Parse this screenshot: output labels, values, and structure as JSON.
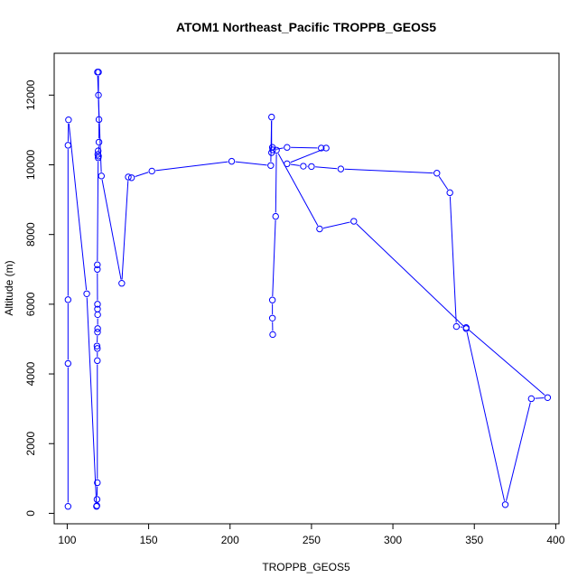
{
  "chart_data": {
    "type": "line",
    "title": "ATOM1 Northeast_Pacific TROPPB_GEOS5",
    "xlabel": "TROPPB_GEOS5",
    "ylabel": "Altitude (m)",
    "xlim": [
      92,
      402
    ],
    "ylim": [
      -300,
      13200
    ],
    "xticks": [
      100,
      150,
      200,
      250,
      300,
      350,
      400
    ],
    "yticks": [
      0,
      2000,
      4000,
      6000,
      8000,
      10000,
      12000
    ],
    "grid": false,
    "markers": "open-circle",
    "color": "#0000ff",
    "series": [
      {
        "points": [
          [
            100.5,
            200
          ],
          [
            100.5,
            4300
          ],
          [
            100.5,
            6130
          ],
          [
            100.5,
            10560
          ],
          [
            100.8,
            11290
          ],
          [
            112,
            6300
          ],
          [
            118,
            200
          ],
          [
            118.2,
            220
          ],
          [
            118.3,
            400
          ],
          [
            118.5,
            880
          ],
          [
            118.5,
            4380
          ],
          [
            118.5,
            4730
          ],
          [
            118.3,
            4800
          ],
          [
            118.6,
            5200
          ],
          [
            118.7,
            5300
          ],
          [
            118.7,
            5700
          ],
          [
            118.6,
            5860
          ],
          [
            118.6,
            6000
          ],
          [
            118.5,
            7000
          ],
          [
            118.5,
            7130
          ],
          [
            119,
            10200
          ],
          [
            118.8,
            10300
          ],
          [
            119,
            10400
          ],
          [
            119.2,
            10250
          ],
          [
            119.5,
            10650
          ],
          [
            119.5,
            11300
          ],
          [
            119.2,
            12000
          ],
          [
            119.2,
            12660
          ],
          [
            118.6,
            12660
          ],
          [
            121,
            9680
          ],
          [
            133.5,
            6600
          ],
          [
            137.5,
            9650
          ],
          [
            139.5,
            9630
          ],
          [
            152,
            9820
          ],
          [
            201,
            10100
          ],
          [
            225,
            9980
          ],
          [
            225.5,
            11370
          ],
          [
            225.5,
            10350
          ],
          [
            226,
            10500
          ],
          [
            226.2,
            10430
          ],
          [
            235,
            10500
          ],
          [
            256,
            10480
          ],
          [
            259,
            10480
          ],
          [
            235,
            10030
          ],
          [
            245,
            9960
          ],
          [
            250,
            9950
          ],
          [
            268,
            9880
          ],
          [
            327,
            9760
          ],
          [
            335,
            9200
          ],
          [
            339,
            5360
          ],
          [
            345,
            5330
          ],
          [
            395,
            3320
          ],
          [
            385,
            3290
          ],
          [
            369,
            250
          ],
          [
            345,
            5300
          ],
          [
            276,
            8380
          ],
          [
            255,
            8160
          ],
          [
            228.5,
            10420
          ],
          [
            228,
            8520
          ],
          [
            226,
            6120
          ],
          [
            226,
            5600
          ],
          [
            226.2,
            5130
          ]
        ]
      }
    ]
  }
}
